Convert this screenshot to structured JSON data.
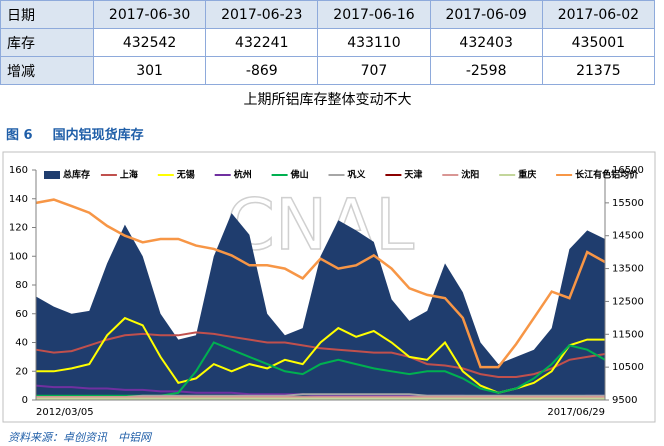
{
  "table": {
    "header": [
      "日期",
      "2017-06-30",
      "2017-06-23",
      "2017-06-16",
      "2017-06-09",
      "2017-06-02"
    ],
    "rows": [
      [
        "库存",
        432542,
        432241,
        433110,
        432403,
        435001
      ],
      [
        "增减",
        301,
        -869,
        707,
        -2598,
        21375
      ]
    ]
  },
  "caption": "上期所铝库存整体变动不大",
  "figure_number": "图 6",
  "figure_title": "国内铝现货库存",
  "watermark": "CNAL",
  "source": "资料来源：卓创资讯　中铝网",
  "chart_data": {
    "type": "line",
    "categories": [
      "2012/03/05",
      null,
      null,
      null,
      null,
      null,
      null,
      null,
      null,
      null,
      null,
      null,
      null,
      null,
      null,
      null,
      null,
      null,
      null,
      null,
      null,
      null,
      null,
      null,
      null,
      null,
      null,
      null,
      null,
      null,
      null,
      null,
      "2017/06/29"
    ],
    "ylim": [
      0,
      160
    ],
    "yticks": [
      0,
      20,
      40,
      60,
      80,
      100,
      120,
      140,
      160
    ],
    "y2lim": [
      9500,
      16500
    ],
    "y2ticks": [
      9500,
      10500,
      11500,
      12500,
      13500,
      14500,
      15500,
      16500
    ],
    "grid": false,
    "legend": "top",
    "series": [
      {
        "name": "总库存",
        "color": "#1f3d6e",
        "area": true,
        "values": [
          72,
          65,
          60,
          62,
          95,
          122,
          100,
          60,
          42,
          45,
          100,
          130,
          115,
          60,
          45,
          50,
          100,
          125,
          118,
          110,
          70,
          55,
          62,
          95,
          75,
          40,
          25,
          30,
          35,
          50,
          105,
          118,
          112
        ]
      },
      {
        "name": "上海",
        "color": "#c0504d",
        "values": [
          35,
          33,
          34,
          38,
          42,
          45,
          46,
          45,
          45,
          47,
          46,
          44,
          42,
          40,
          40,
          38,
          36,
          35,
          34,
          33,
          33,
          30,
          25,
          24,
          22,
          18,
          16,
          16,
          18,
          22,
          28,
          30,
          32
        ]
      },
      {
        "name": "无锡",
        "color": "#ffff00",
        "values": [
          20,
          20,
          22,
          25,
          45,
          57,
          52,
          30,
          12,
          15,
          25,
          20,
          25,
          22,
          28,
          25,
          40,
          50,
          44,
          48,
          40,
          30,
          28,
          40,
          20,
          10,
          5,
          8,
          12,
          20,
          38,
          42,
          42
        ]
      },
      {
        "name": "杭州",
        "color": "#7030a0",
        "values": [
          10,
          9,
          9,
          8,
          8,
          7,
          7,
          6,
          6,
          5,
          5,
          5,
          4,
          4,
          4,
          4,
          3,
          3,
          3,
          3,
          3,
          3,
          3,
          3,
          3,
          2,
          2,
          2,
          2,
          2,
          2,
          3,
          3
        ]
      },
      {
        "name": "佛山",
        "color": "#00b050",
        "values": [
          3,
          3,
          3,
          3,
          3,
          3,
          3,
          3,
          5,
          20,
          40,
          35,
          30,
          25,
          20,
          18,
          25,
          28,
          25,
          22,
          20,
          18,
          20,
          20,
          15,
          8,
          5,
          8,
          15,
          25,
          38,
          35,
          28
        ]
      },
      {
        "name": "巩义",
        "color": "#a6a6a6",
        "values": [
          2,
          2,
          2,
          2,
          2,
          2,
          3,
          3,
          3,
          3,
          3,
          3,
          3,
          3,
          3,
          4,
          4,
          4,
          4,
          4,
          4,
          4,
          3,
          3,
          3,
          3,
          3,
          3,
          3,
          3,
          3,
          3,
          3
        ]
      },
      {
        "name": "天津",
        "color": "#8b0000",
        "values": [
          1,
          1,
          1,
          1,
          1,
          1,
          1,
          1,
          1,
          1,
          1,
          1,
          1,
          1,
          1,
          1,
          1,
          1,
          1,
          1,
          1,
          1,
          1,
          1,
          1,
          1,
          1,
          1,
          1,
          1,
          1,
          1,
          1
        ]
      },
      {
        "name": "沈阳",
        "color": "#d99694",
        "values": [
          2,
          2,
          2,
          2,
          2,
          2,
          2,
          2,
          2,
          2,
          2,
          2,
          2,
          2,
          2,
          2,
          2,
          2,
          2,
          2,
          2,
          2,
          2,
          2,
          2,
          2,
          2,
          2,
          2,
          2,
          2,
          2,
          2
        ]
      },
      {
        "name": "重庆",
        "color": "#c3d69b",
        "values": [
          1,
          1,
          1,
          1,
          1,
          1,
          1,
          1,
          1,
          1,
          1,
          1,
          1,
          1,
          1,
          1,
          1,
          1,
          1,
          1,
          1,
          1,
          1,
          1,
          1,
          1,
          1,
          1,
          1,
          1,
          1,
          1,
          1
        ]
      },
      {
        "name": "长江有色铝均价",
        "color": "#f79646",
        "axis": "y2",
        "values": [
          15500,
          15600,
          15400,
          15200,
          14800,
          14500,
          14300,
          14400,
          14400,
          14200,
          14100,
          13900,
          13600,
          13600,
          13500,
          13200,
          13800,
          13500,
          13600,
          13900,
          13500,
          12900,
          12700,
          12600,
          12000,
          10500,
          10500,
          11200,
          12000,
          12800,
          12600,
          14000,
          13700
        ]
      }
    ]
  }
}
